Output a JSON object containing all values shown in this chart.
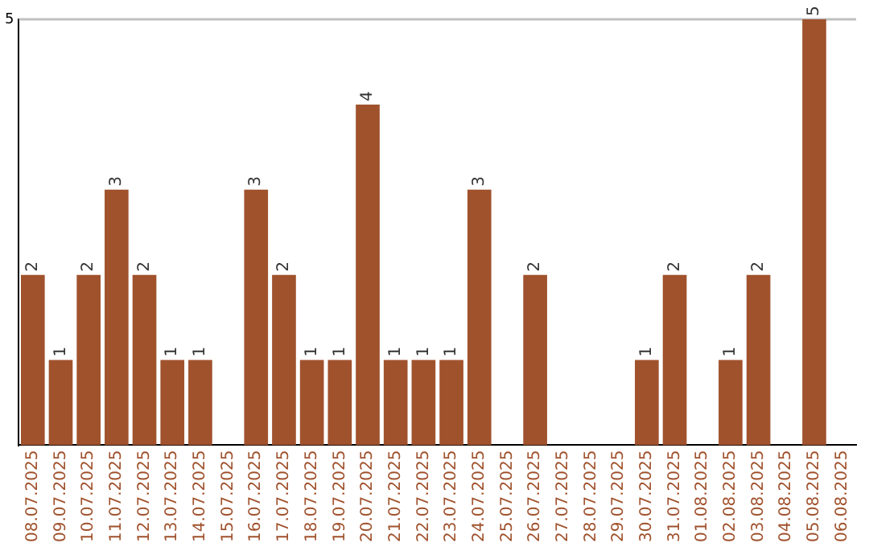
{
  "chart_data": {
    "type": "bar",
    "categories": [
      "08.07.2025",
      "09.07.2025",
      "10.07.2025",
      "11.07.2025",
      "12.07.2025",
      "13.07.2025",
      "14.07.2025",
      "15.07.2025",
      "16.07.2025",
      "17.07.2025",
      "18.07.2025",
      "19.07.2025",
      "20.07.2025",
      "21.07.2025",
      "22.07.2025",
      "23.07.2025",
      "24.07.2025",
      "25.07.2025",
      "26.07.2025",
      "27.07.2025",
      "28.07.2025",
      "29.07.2025",
      "30.07.2025",
      "31.07.2025",
      "01.08.2025",
      "02.08.2025",
      "03.08.2025",
      "04.08.2025",
      "05.08.2025",
      "06.08.2025"
    ],
    "values": [
      2,
      1,
      2,
      3,
      2,
      1,
      1,
      null,
      3,
      2,
      1,
      1,
      4,
      1,
      1,
      1,
      3,
      null,
      2,
      null,
      null,
      null,
      1,
      2,
      null,
      1,
      2,
      null,
      5,
      null
    ],
    "color": "#a0522d",
    "ylim": [
      0,
      5
    ],
    "yticks": [
      5
    ],
    "ref_lines": [
      {
        "axis": "y",
        "value": 5,
        "color": "#c0c0c0"
      }
    ],
    "legend": false,
    "data_labels": true
  }
}
